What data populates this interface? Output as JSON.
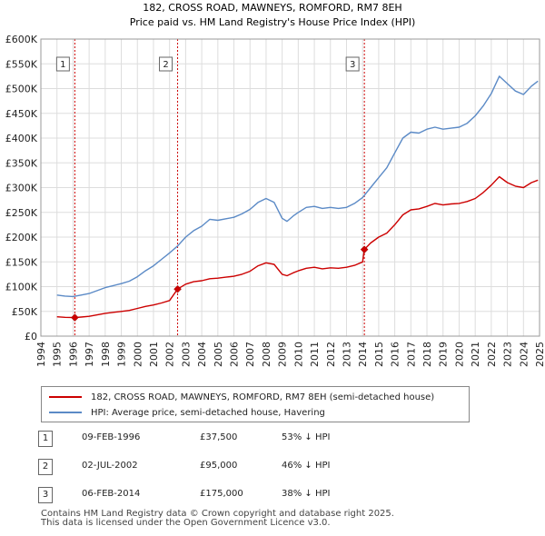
{
  "chart_data": {
    "type": "line",
    "title": "182, CROSS ROAD, MAWNEYS, ROMFORD, RM7 8EH",
    "subtitle": "Price paid vs. HM Land Registry's House Price Index (HPI)",
    "xlim": [
      1994,
      2025
    ],
    "ylim": [
      0,
      600000
    ],
    "x_ticks": [
      "1994",
      "1995",
      "1996",
      "1997",
      "1998",
      "1999",
      "2000",
      "2001",
      "2002",
      "2003",
      "2004",
      "2005",
      "2006",
      "2007",
      "2008",
      "2009",
      "2010",
      "2011",
      "2012",
      "2013",
      "2014",
      "2015",
      "2016",
      "2017",
      "2018",
      "2019",
      "2020",
      "2021",
      "2022",
      "2023",
      "2024",
      "2025"
    ],
    "y_ticks": [
      {
        "v": 0,
        "label": "£0"
      },
      {
        "v": 50000,
        "label": "£50K"
      },
      {
        "v": 100000,
        "label": "£100K"
      },
      {
        "v": 150000,
        "label": "£150K"
      },
      {
        "v": 200000,
        "label": "£200K"
      },
      {
        "v": 250000,
        "label": "£250K"
      },
      {
        "v": 300000,
        "label": "£300K"
      },
      {
        "v": 350000,
        "label": "£350K"
      },
      {
        "v": 400000,
        "label": "£400K"
      },
      {
        "v": 450000,
        "label": "£450K"
      },
      {
        "v": 500000,
        "label": "£500K"
      },
      {
        "v": 550000,
        "label": "£550K"
      },
      {
        "v": 600000,
        "label": "£600K"
      }
    ],
    "grid": true,
    "series": [
      {
        "name": "182, CROSS ROAD, MAWNEYS, ROMFORD, RM7 8EH (semi-detached house)",
        "color": "#cc0000",
        "points": [
          [
            1995.0,
            39000
          ],
          [
            1995.5,
            38000
          ],
          [
            1996.11,
            37500
          ],
          [
            1996.5,
            38500
          ],
          [
            1997.0,
            40000
          ],
          [
            1997.5,
            43000
          ],
          [
            1998.0,
            46000
          ],
          [
            1998.5,
            48000
          ],
          [
            1999.0,
            50000
          ],
          [
            1999.5,
            52000
          ],
          [
            2000.0,
            56000
          ],
          [
            2000.5,
            60000
          ],
          [
            2001.0,
            63000
          ],
          [
            2001.5,
            67000
          ],
          [
            2002.0,
            72000
          ],
          [
            2002.5,
            95000
          ],
          [
            2003.0,
            105000
          ],
          [
            2003.5,
            110000
          ],
          [
            2004.0,
            112000
          ],
          [
            2004.5,
            116000
          ],
          [
            2005.0,
            117000
          ],
          [
            2005.5,
            119000
          ],
          [
            2006.0,
            121000
          ],
          [
            2006.5,
            125000
          ],
          [
            2007.0,
            131000
          ],
          [
            2007.5,
            142000
          ],
          [
            2008.0,
            148000
          ],
          [
            2008.5,
            145000
          ],
          [
            2009.0,
            125000
          ],
          [
            2009.3,
            122000
          ],
          [
            2009.7,
            128000
          ],
          [
            2010.0,
            132000
          ],
          [
            2010.5,
            137000
          ],
          [
            2011.0,
            139000
          ],
          [
            2011.5,
            136000
          ],
          [
            2012.0,
            138000
          ],
          [
            2012.5,
            137000
          ],
          [
            2013.0,
            139000
          ],
          [
            2013.5,
            143000
          ],
          [
            2014.0,
            150000
          ],
          [
            2014.11,
            175000
          ],
          [
            2014.5,
            188000
          ],
          [
            2015.0,
            200000
          ],
          [
            2015.5,
            208000
          ],
          [
            2016.0,
            225000
          ],
          [
            2016.5,
            245000
          ],
          [
            2017.0,
            255000
          ],
          [
            2017.5,
            257000
          ],
          [
            2018.0,
            262000
          ],
          [
            2018.5,
            268000
          ],
          [
            2019.0,
            265000
          ],
          [
            2019.5,
            267000
          ],
          [
            2020.0,
            268000
          ],
          [
            2020.5,
            272000
          ],
          [
            2021.0,
            278000
          ],
          [
            2021.5,
            290000
          ],
          [
            2022.0,
            305000
          ],
          [
            2022.5,
            322000
          ],
          [
            2023.0,
            310000
          ],
          [
            2023.5,
            303000
          ],
          [
            2024.0,
            300000
          ],
          [
            2024.5,
            310000
          ],
          [
            2024.9,
            315000
          ]
        ]
      },
      {
        "name": "HPI: Average price, semi-detached house, Havering",
        "color": "#5b8ac6",
        "points": [
          [
            1995.0,
            83000
          ],
          [
            1995.5,
            81000
          ],
          [
            1996.0,
            80000
          ],
          [
            1996.5,
            83000
          ],
          [
            1997.0,
            86000
          ],
          [
            1997.5,
            92000
          ],
          [
            1998.0,
            98000
          ],
          [
            1998.5,
            102000
          ],
          [
            1999.0,
            106000
          ],
          [
            1999.5,
            111000
          ],
          [
            2000.0,
            120000
          ],
          [
            2000.5,
            132000
          ],
          [
            2001.0,
            142000
          ],
          [
            2001.5,
            155000
          ],
          [
            2002.0,
            168000
          ],
          [
            2002.5,
            182000
          ],
          [
            2003.0,
            200000
          ],
          [
            2003.5,
            213000
          ],
          [
            2004.0,
            222000
          ],
          [
            2004.5,
            236000
          ],
          [
            2005.0,
            234000
          ],
          [
            2005.5,
            237000
          ],
          [
            2006.0,
            240000
          ],
          [
            2006.5,
            247000
          ],
          [
            2007.0,
            256000
          ],
          [
            2007.5,
            270000
          ],
          [
            2008.0,
            278000
          ],
          [
            2008.5,
            270000
          ],
          [
            2009.0,
            238000
          ],
          [
            2009.3,
            232000
          ],
          [
            2009.7,
            243000
          ],
          [
            2010.0,
            250000
          ],
          [
            2010.5,
            260000
          ],
          [
            2011.0,
            262000
          ],
          [
            2011.5,
            258000
          ],
          [
            2012.0,
            260000
          ],
          [
            2012.5,
            258000
          ],
          [
            2013.0,
            260000
          ],
          [
            2013.5,
            268000
          ],
          [
            2014.0,
            280000
          ],
          [
            2014.5,
            300000
          ],
          [
            2015.0,
            320000
          ],
          [
            2015.5,
            340000
          ],
          [
            2016.0,
            370000
          ],
          [
            2016.5,
            400000
          ],
          [
            2017.0,
            412000
          ],
          [
            2017.5,
            410000
          ],
          [
            2018.0,
            418000
          ],
          [
            2018.5,
            422000
          ],
          [
            2019.0,
            418000
          ],
          [
            2019.5,
            420000
          ],
          [
            2020.0,
            422000
          ],
          [
            2020.5,
            430000
          ],
          [
            2021.0,
            445000
          ],
          [
            2021.5,
            465000
          ],
          [
            2022.0,
            490000
          ],
          [
            2022.5,
            525000
          ],
          [
            2023.0,
            510000
          ],
          [
            2023.5,
            495000
          ],
          [
            2024.0,
            488000
          ],
          [
            2024.5,
            505000
          ],
          [
            2024.9,
            515000
          ]
        ]
      }
    ],
    "sales": [
      {
        "num": "1",
        "x": 1996.11,
        "price": 37500,
        "date": "09-FEB-1996",
        "price_label": "£37,500",
        "hpi": "53% ↓ HPI"
      },
      {
        "num": "2",
        "x": 2002.5,
        "price": 95000,
        "date": "02-JUL-2002",
        "price_label": "£95,000",
        "hpi": "46% ↓ HPI"
      },
      {
        "num": "3",
        "x": 2014.11,
        "price": 175000,
        "date": "06-FEB-2014",
        "price_label": "£175,000",
        "hpi": "38% ↓ HPI"
      }
    ],
    "colors": {
      "grid": "#dddddd",
      "plot_bg": "#ffffff",
      "marker_border": "#666666",
      "vline": "#cc0000"
    }
  },
  "legend": {
    "property_label": "182, CROSS ROAD, MAWNEYS, ROMFORD, RM7 8EH (semi-detached house)",
    "hpi_label": "HPI: Average price, semi-detached house, Havering"
  },
  "footer": {
    "line1": "Contains HM Land Registry data © Crown copyright and database right 2025.",
    "line2": "This data is licensed under the Open Government Licence v3.0."
  }
}
